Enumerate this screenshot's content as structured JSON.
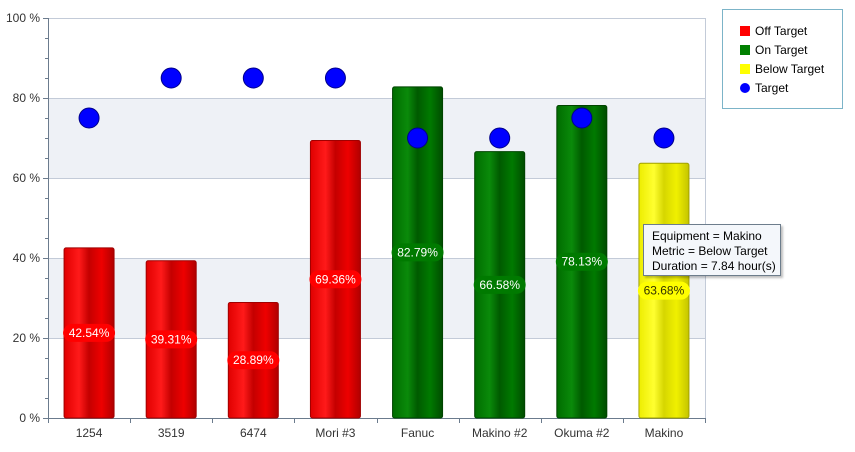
{
  "chart_data": {
    "type": "bar",
    "categories": [
      "1254",
      "3519",
      "6474",
      "Mori #3",
      "Fanuc",
      "Makino #2",
      "Okuma #2",
      "Makino"
    ],
    "values": [
      42.54,
      39.31,
      28.89,
      69.36,
      82.79,
      66.58,
      78.13,
      63.68
    ],
    "value_labels": [
      "42.54%",
      "39.31%",
      "28.89%",
      "69.36%",
      "82.79%",
      "66.58%",
      "78.13%",
      "63.68%"
    ],
    "status": [
      "Off Target",
      "Off Target",
      "Off Target",
      "Off Target",
      "On Target",
      "On Target",
      "On Target",
      "Below Target"
    ],
    "target": [
      75,
      85,
      85,
      85,
      70,
      70,
      75,
      70
    ],
    "ylim": [
      0,
      100
    ],
    "yticks": [
      0,
      20,
      40,
      60,
      80,
      100
    ],
    "ytick_labels": [
      "0 %",
      "20 %",
      "40 %",
      "60 %",
      "80 %",
      "100 %"
    ],
    "grid": true,
    "legend_position": "top-right",
    "legend": [
      {
        "label": "Off Target",
        "color": "#ff0000",
        "shape": "square"
      },
      {
        "label": "On Target",
        "color": "#008000",
        "shape": "square"
      },
      {
        "label": "Below Target",
        "color": "#ffff00",
        "shape": "square"
      },
      {
        "label": "Target",
        "color": "#0000ff",
        "shape": "circle"
      }
    ],
    "colors": {
      "Off Target": "#ff0000",
      "On Target": "#008000",
      "Below Target": "#ffff00",
      "Target": "#0000ff"
    }
  },
  "tooltip": {
    "line1": "Equipment = Makino",
    "line2": "Metric = Below Target",
    "line3": "Duration = 7.84 hour(s)"
  }
}
